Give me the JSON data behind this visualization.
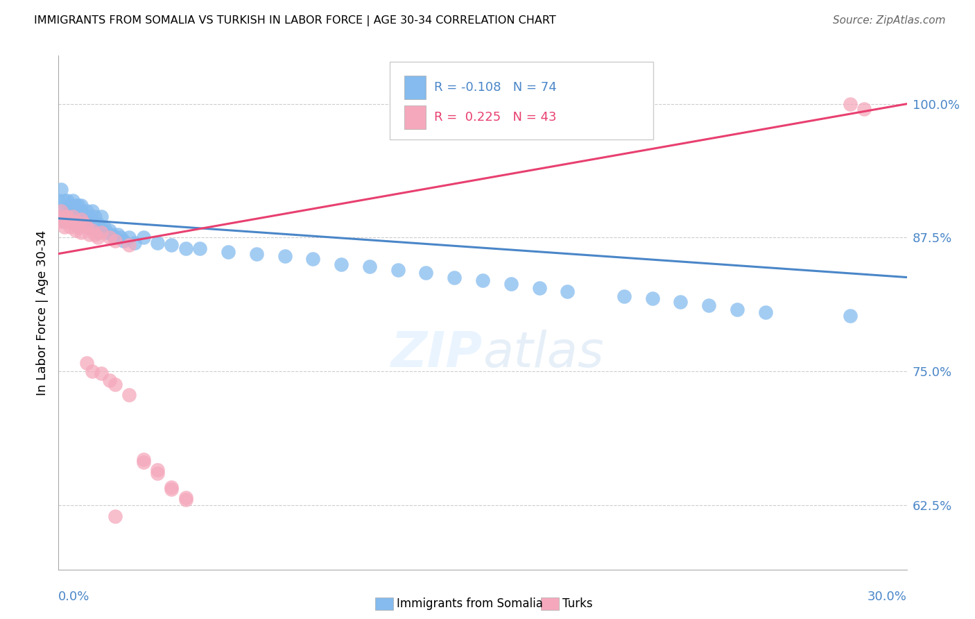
{
  "title": "IMMIGRANTS FROM SOMALIA VS TURKISH IN LABOR FORCE | AGE 30-34 CORRELATION CHART",
  "source": "Source: ZipAtlas.com",
  "ylabel": "In Labor Force | Age 30-34",
  "xmin": 0.0,
  "xmax": 0.3,
  "ymin": 0.565,
  "ymax": 1.045,
  "yticks": [
    0.625,
    0.75,
    0.875,
    1.0
  ],
  "ytick_labels": [
    "62.5%",
    "75.0%",
    "87.5%",
    "100.0%"
  ],
  "R_somalia": -0.108,
  "N_somalia": 74,
  "R_turks": 0.225,
  "N_turks": 43,
  "color_somalia": "#85bbee",
  "color_turks": "#f5a8bc",
  "line_color_somalia": "#4a86c8",
  "line_color_turks": "#e84070",
  "somalia_x": [
    0.0,
    0.001,
    0.001,
    0.002,
    0.002,
    0.002,
    0.003,
    0.003,
    0.003,
    0.004,
    0.004,
    0.004,
    0.005,
    0.005,
    0.005,
    0.006,
    0.006,
    0.006,
    0.007,
    0.007,
    0.007,
    0.008,
    0.008,
    0.008,
    0.009,
    0.009,
    0.01,
    0.01,
    0.01,
    0.011,
    0.011,
    0.012,
    0.012,
    0.013,
    0.013,
    0.014,
    0.014,
    0.015,
    0.015,
    0.016,
    0.017,
    0.018,
    0.019,
    0.02,
    0.021,
    0.022,
    0.023,
    0.025,
    0.027,
    0.03,
    0.035,
    0.04,
    0.045,
    0.05,
    0.06,
    0.07,
    0.08,
    0.09,
    0.1,
    0.11,
    0.12,
    0.13,
    0.14,
    0.15,
    0.16,
    0.17,
    0.18,
    0.2,
    0.21,
    0.22,
    0.23,
    0.24,
    0.25,
    0.28
  ],
  "somalia_y": [
    0.91,
    0.92,
    0.895,
    0.9,
    0.91,
    0.89,
    0.9,
    0.91,
    0.895,
    0.9,
    0.905,
    0.895,
    0.9,
    0.91,
    0.89,
    0.895,
    0.905,
    0.9,
    0.895,
    0.905,
    0.885,
    0.9,
    0.895,
    0.905,
    0.89,
    0.895,
    0.885,
    0.895,
    0.9,
    0.895,
    0.885,
    0.89,
    0.9,
    0.888,
    0.895,
    0.88,
    0.888,
    0.885,
    0.895,
    0.885,
    0.88,
    0.882,
    0.878,
    0.875,
    0.878,
    0.875,
    0.872,
    0.875,
    0.87,
    0.875,
    0.87,
    0.868,
    0.865,
    0.865,
    0.862,
    0.86,
    0.858,
    0.855,
    0.85,
    0.848,
    0.845,
    0.842,
    0.838,
    0.835,
    0.832,
    0.828,
    0.825,
    0.82,
    0.818,
    0.815,
    0.812,
    0.808,
    0.805,
    0.802
  ],
  "turks_x": [
    0.0,
    0.001,
    0.001,
    0.002,
    0.002,
    0.003,
    0.003,
    0.004,
    0.004,
    0.005,
    0.005,
    0.006,
    0.006,
    0.007,
    0.008,
    0.008,
    0.009,
    0.01,
    0.011,
    0.012,
    0.013,
    0.014,
    0.015,
    0.018,
    0.02,
    0.025,
    0.03,
    0.035,
    0.04,
    0.045,
    0.01,
    0.012,
    0.015,
    0.018,
    0.02,
    0.025,
    0.03,
    0.035,
    0.04,
    0.045,
    0.02,
    0.28,
    0.285
  ],
  "turks_y": [
    0.895,
    0.9,
    0.89,
    0.895,
    0.885,
    0.89,
    0.895,
    0.885,
    0.89,
    0.895,
    0.888,
    0.882,
    0.89,
    0.885,
    0.892,
    0.88,
    0.888,
    0.885,
    0.878,
    0.882,
    0.878,
    0.875,
    0.88,
    0.875,
    0.872,
    0.868,
    0.665,
    0.658,
    0.64,
    0.63,
    0.758,
    0.75,
    0.748,
    0.742,
    0.738,
    0.728,
    0.668,
    0.655,
    0.642,
    0.632,
    0.615,
    1.0,
    0.995
  ],
  "line_somalia_x0": 0.0,
  "line_somalia_y0": 0.893,
  "line_somalia_x1": 0.3,
  "line_somalia_y1": 0.838,
  "line_turks_x0": 0.0,
  "line_turks_y0": 0.86,
  "line_turks_x1": 0.3,
  "line_turks_y1": 1.0
}
